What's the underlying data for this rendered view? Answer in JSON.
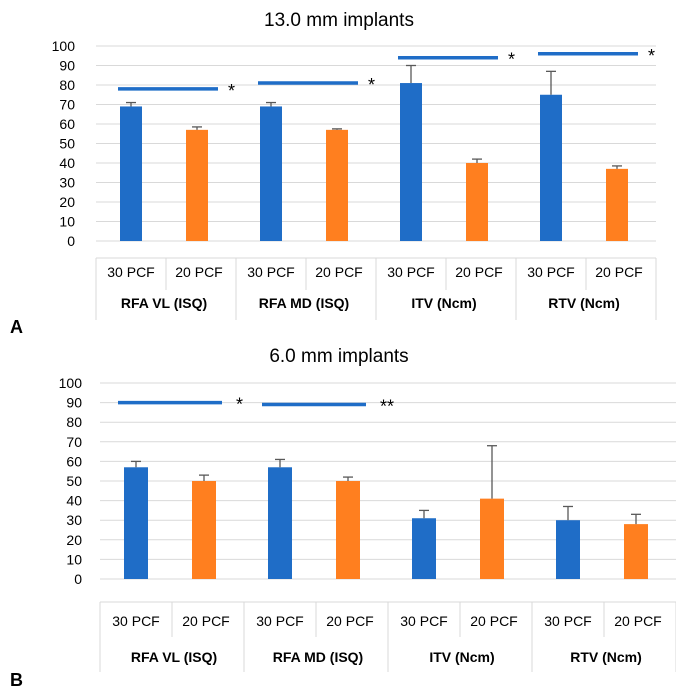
{
  "figure": {
    "panel_a_label": "A",
    "panel_b_label": "B"
  },
  "chart_data": [
    {
      "type": "bar",
      "title": "13.0 mm implants",
      "ylim": [
        0,
        100
      ],
      "yticks": [
        "0",
        "10",
        "20",
        "30",
        "40",
        "50",
        "60",
        "70",
        "80",
        "90",
        "100"
      ],
      "categories": [
        "30 PCF",
        "20 PCF",
        "30 PCF",
        "20 PCF",
        "30 PCF",
        "20 PCF",
        "30 PCF",
        "20 PCF"
      ],
      "groups": [
        "RFA VL (ISQ)",
        "RFA MD (ISQ)",
        "ITV (Ncm)",
        "RTV (Ncm)"
      ],
      "values": [
        69,
        57,
        69,
        57,
        81,
        40,
        75,
        37
      ],
      "errors": [
        2,
        1.5,
        2,
        0.5,
        9,
        2,
        12,
        1.5
      ],
      "colors": [
        "#1f6dc7",
        "#ff7f1f",
        "#1f6dc7",
        "#ff7f1f",
        "#1f6dc7",
        "#ff7f1f",
        "#1f6dc7",
        "#ff7f1f"
      ],
      "significance": [
        {
          "group": 0,
          "marker": "*",
          "level": 78
        },
        {
          "group": 1,
          "marker": "*",
          "level": 81
        },
        {
          "group": 2,
          "marker": "*",
          "level": 94
        },
        {
          "group": 3,
          "marker": "*",
          "level": 96
        }
      ],
      "grid": true
    },
    {
      "type": "bar",
      "title": "6.0 mm implants",
      "ylim": [
        0,
        100
      ],
      "yticks": [
        "0",
        "10",
        "20",
        "30",
        "40",
        "50",
        "60",
        "70",
        "80",
        "90",
        "100"
      ],
      "categories": [
        "30 PCF",
        "20 PCF",
        "30 PCF",
        "20 PCF",
        "30 PCF",
        "20 PCF",
        "30 PCF",
        "20 PCF"
      ],
      "groups": [
        "RFA VL (ISQ)",
        "RFA MD (ISQ)",
        "ITV (Ncm)",
        "RTV (Ncm)"
      ],
      "values": [
        57,
        50,
        57,
        50,
        31,
        41,
        30,
        28
      ],
      "errors": [
        3,
        3,
        4,
        2,
        4,
        27,
        7,
        5
      ],
      "colors": [
        "#1f6dc7",
        "#ff7f1f",
        "#1f6dc7",
        "#ff7f1f",
        "#1f6dc7",
        "#ff7f1f",
        "#1f6dc7",
        "#ff7f1f"
      ],
      "significance": [
        {
          "group": 0,
          "marker": "*",
          "level": 90
        },
        {
          "group": 1,
          "marker": "**",
          "level": 89
        }
      ],
      "grid": true
    }
  ]
}
